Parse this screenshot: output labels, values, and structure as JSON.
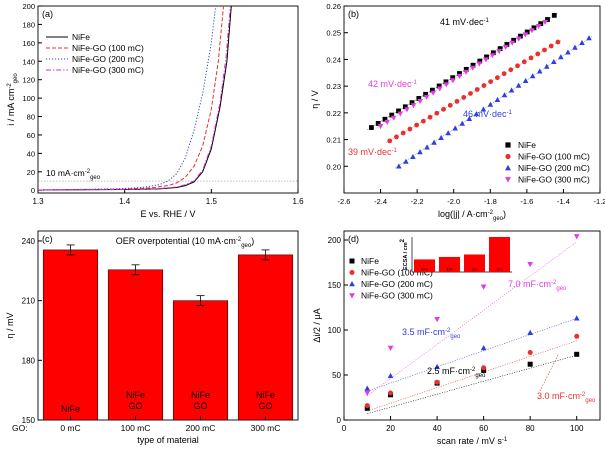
{
  "chart_data": [
    {
      "panel": "(a)",
      "type": "line",
      "xlabel": "E vs. RHE / V",
      "ylabel_main": "i / mA cm",
      "ylabel_sup": "-2",
      "ylabel_sub": "geo",
      "xlim": [
        1.3,
        1.6
      ],
      "ylim": [
        -3,
        200
      ],
      "xticks": [
        "1.3",
        "1.4",
        "1.5",
        "1.6"
      ],
      "yticks": [
        "0",
        "20",
        "40",
        "60",
        "80",
        "100",
        "120",
        "140",
        "160",
        "180",
        "200"
      ],
      "annotation_main": "10 mA·cm",
      "annotation_sup": "-2",
      "annotation_sub": "geo",
      "annotation_value": 10,
      "legend_position": "top-left",
      "series": [
        {
          "name": "NiFe",
          "color": "#000000",
          "dash": "solid",
          "points": [
            [
              1.3,
              0.3
            ],
            [
              1.4,
              0.8
            ],
            [
              1.44,
              1.5
            ],
            [
              1.46,
              3
            ],
            [
              1.47,
              5
            ],
            [
              1.48,
              9
            ],
            [
              1.49,
              20
            ],
            [
              1.5,
              45
            ],
            [
              1.51,
              90
            ],
            [
              1.518,
              140
            ],
            [
              1.523,
              200
            ]
          ]
        },
        {
          "name": "NiFe-GO (100 mC)",
          "color": "#e8312f",
          "dash": "dashed",
          "points": [
            [
              1.3,
              0.3
            ],
            [
              1.4,
              1.2
            ],
            [
              1.43,
              2.5
            ],
            [
              1.45,
              5
            ],
            [
              1.46,
              8
            ],
            [
              1.47,
              14
            ],
            [
              1.48,
              26
            ],
            [
              1.49,
              48
            ],
            [
              1.5,
              88
            ],
            [
              1.508,
              140
            ],
            [
              1.514,
              200
            ]
          ]
        },
        {
          "name": "NiFe-GO (200 mC)",
          "color": "#2e3fe0",
          "dash": "dotted",
          "points": [
            [
              1.3,
              0.3
            ],
            [
              1.39,
              1.5
            ],
            [
              1.42,
              3
            ],
            [
              1.44,
              6
            ],
            [
              1.45,
              10
            ],
            [
              1.46,
              18
            ],
            [
              1.47,
              35
            ],
            [
              1.48,
              65
            ],
            [
              1.49,
              105
            ],
            [
              1.5,
              160
            ],
            [
              1.505,
              200
            ]
          ]
        },
        {
          "name": "NiFe-GO (300 mC)",
          "color": "#d62ad6",
          "dash": "dashdot",
          "points": [
            [
              1.3,
              0.3
            ],
            [
              1.4,
              0.9
            ],
            [
              1.44,
              1.8
            ],
            [
              1.46,
              3.5
            ],
            [
              1.47,
              6
            ],
            [
              1.48,
              10
            ],
            [
              1.49,
              22
            ],
            [
              1.5,
              48
            ],
            [
              1.51,
              95
            ],
            [
              1.517,
              145
            ],
            [
              1.522,
              200
            ]
          ]
        }
      ]
    },
    {
      "panel": "(b)",
      "type": "scatter",
      "xlabel_main": "log(|j| / A·cm",
      "xlabel_sup": "-2",
      "xlabel_sub": "geo",
      "xlabel_end": ")",
      "ylabel": "η / V",
      "xlim": [
        -2.6,
        -1.2
      ],
      "ylim": [
        0.19,
        0.26
      ],
      "xticks": [
        "-2.6",
        "-2.4",
        "-2.2",
        "-2.0",
        "-1.8",
        "-1.6",
        "-1.4",
        "-1.2"
      ],
      "yticks": [
        "0.20",
        "0.21",
        "0.22",
        "0.23",
        "0.24",
        "0.25",
        "0.26"
      ],
      "legend_position": "bottom-right",
      "series": [
        {
          "name": "NiFe",
          "color": "#000000",
          "marker": "square",
          "x_start": -2.45,
          "x_end": -1.45,
          "y_start": 0.2145,
          "y_end": 0.2565,
          "n": 28
        },
        {
          "name": "NiFe-GO (100 mC)",
          "color": "#e8312f",
          "marker": "circle",
          "x_start": -2.35,
          "x_end": -1.43,
          "y_start": 0.2095,
          "y_end": 0.2465,
          "n": 26
        },
        {
          "name": "NiFe-GO (200 mC)",
          "color": "#2e3fe0",
          "marker": "triangle-up",
          "x_start": -2.3,
          "x_end": -1.26,
          "y_start": 0.2,
          "y_end": 0.248,
          "n": 28
        },
        {
          "name": "NiFe-GO (300 mC)",
          "color": "#e23ce2",
          "marker": "triangle-down",
          "x_start": -2.4,
          "x_end": -1.5,
          "y_start": 0.215,
          "y_end": 0.254,
          "n": 26
        }
      ],
      "annotations": [
        {
          "text": "41 mV·dec",
          "sup": "-1",
          "color": "#000000"
        },
        {
          "text": "42 mV·dec",
          "sup": "-1",
          "color": "#e23ce2"
        },
        {
          "text": "46 mV·dec",
          "sup": "-1",
          "color": "#2e3fe0"
        },
        {
          "text": "39 mV·dec",
          "sup": "-1",
          "color": "#e8312f"
        }
      ]
    },
    {
      "panel": "(c)",
      "type": "bar",
      "title_main": "OER overpotential (10 mA·cm",
      "title_sup": "-2",
      "title_sub": "geo",
      "title_end": ")",
      "ylabel": "η / mV",
      "xlabel": "type of material",
      "row_label": "GO:",
      "ylim": [
        150,
        245
      ],
      "yticks": [
        "150",
        "180",
        "210",
        "240"
      ],
      "bar_color": "#ff0000",
      "categories": [
        "0 mC",
        "100 mC",
        "200 mC",
        "300 mC"
      ],
      "bar_labels": [
        [
          "NiFe"
        ],
        [
          "NiFe",
          "GO"
        ],
        [
          "NiFe",
          "GO"
        ],
        [
          "NiFe",
          "GO"
        ]
      ],
      "values": [
        235.5,
        225.5,
        210,
        233
      ],
      "errors": [
        2.5,
        2.5,
        2.5,
        2.5
      ]
    },
    {
      "panel": "(d)",
      "type": "scatter",
      "xlabel": "scan rate / mV s",
      "xlabel_sup": "-1",
      "ylabel": "Δi/2 / μA",
      "xlim": [
        0,
        110
      ],
      "ylim": [
        0,
        210
      ],
      "xticks": [
        "0",
        "20",
        "40",
        "60",
        "80",
        "100"
      ],
      "yticks": [
        "0",
        "50",
        "100",
        "150",
        "200"
      ],
      "legend_position": "left",
      "x": [
        10,
        20,
        40,
        60,
        80,
        100
      ],
      "series": [
        {
          "name": "NiFe",
          "color": "#000000",
          "marker": "square",
          "values": [
            13,
            28,
            41,
            55,
            62,
            73
          ],
          "fit": [
            7,
            72
          ]
        },
        {
          "name": "NiFe-GO (100 mC)",
          "color": "#e8312f",
          "marker": "circle",
          "values": [
            16,
            30,
            42,
            58,
            75,
            93
          ],
          "fit": [
            10,
            88
          ]
        },
        {
          "name": "NiFe-GO (200 mC)",
          "color": "#2e3fe0",
          "marker": "triangle-up",
          "values": [
            35,
            49,
            59,
            80,
            97,
            113
          ],
          "fit": [
            32,
            113
          ]
        },
        {
          "name": "NiFe-GO (300 mC)",
          "color": "#e23ce2",
          "marker": "triangle-down",
          "values": [
            30,
            80,
            112,
            148,
            173,
            204
          ],
          "fit": [
            27,
            198
          ]
        }
      ],
      "annotations": [
        {
          "text": "7.0 mF·cm",
          "sup": "-2",
          "sub": "geo",
          "color": "#e23ce2"
        },
        {
          "text": "3.5 mF·cm",
          "sup": "-2",
          "sub": "geo",
          "color": "#2e3fe0"
        },
        {
          "text": "2.5 mF·cm",
          "sup": "-2",
          "sub": "geo",
          "color": "#000000"
        },
        {
          "text": "3.0 mF·cm",
          "sup": "-2",
          "sub": "geo",
          "color": "#e8312f"
        }
      ],
      "inset": {
        "ylabel_main": "ECSA / cm",
        "ylabel_sup": "2",
        "bar_color": "#ff0000",
        "values": [
          0.36,
          0.43,
          0.5,
          1.0
        ],
        "labels": [
          "NiFe",
          "100",
          "200",
          "300"
        ]
      }
    }
  ]
}
